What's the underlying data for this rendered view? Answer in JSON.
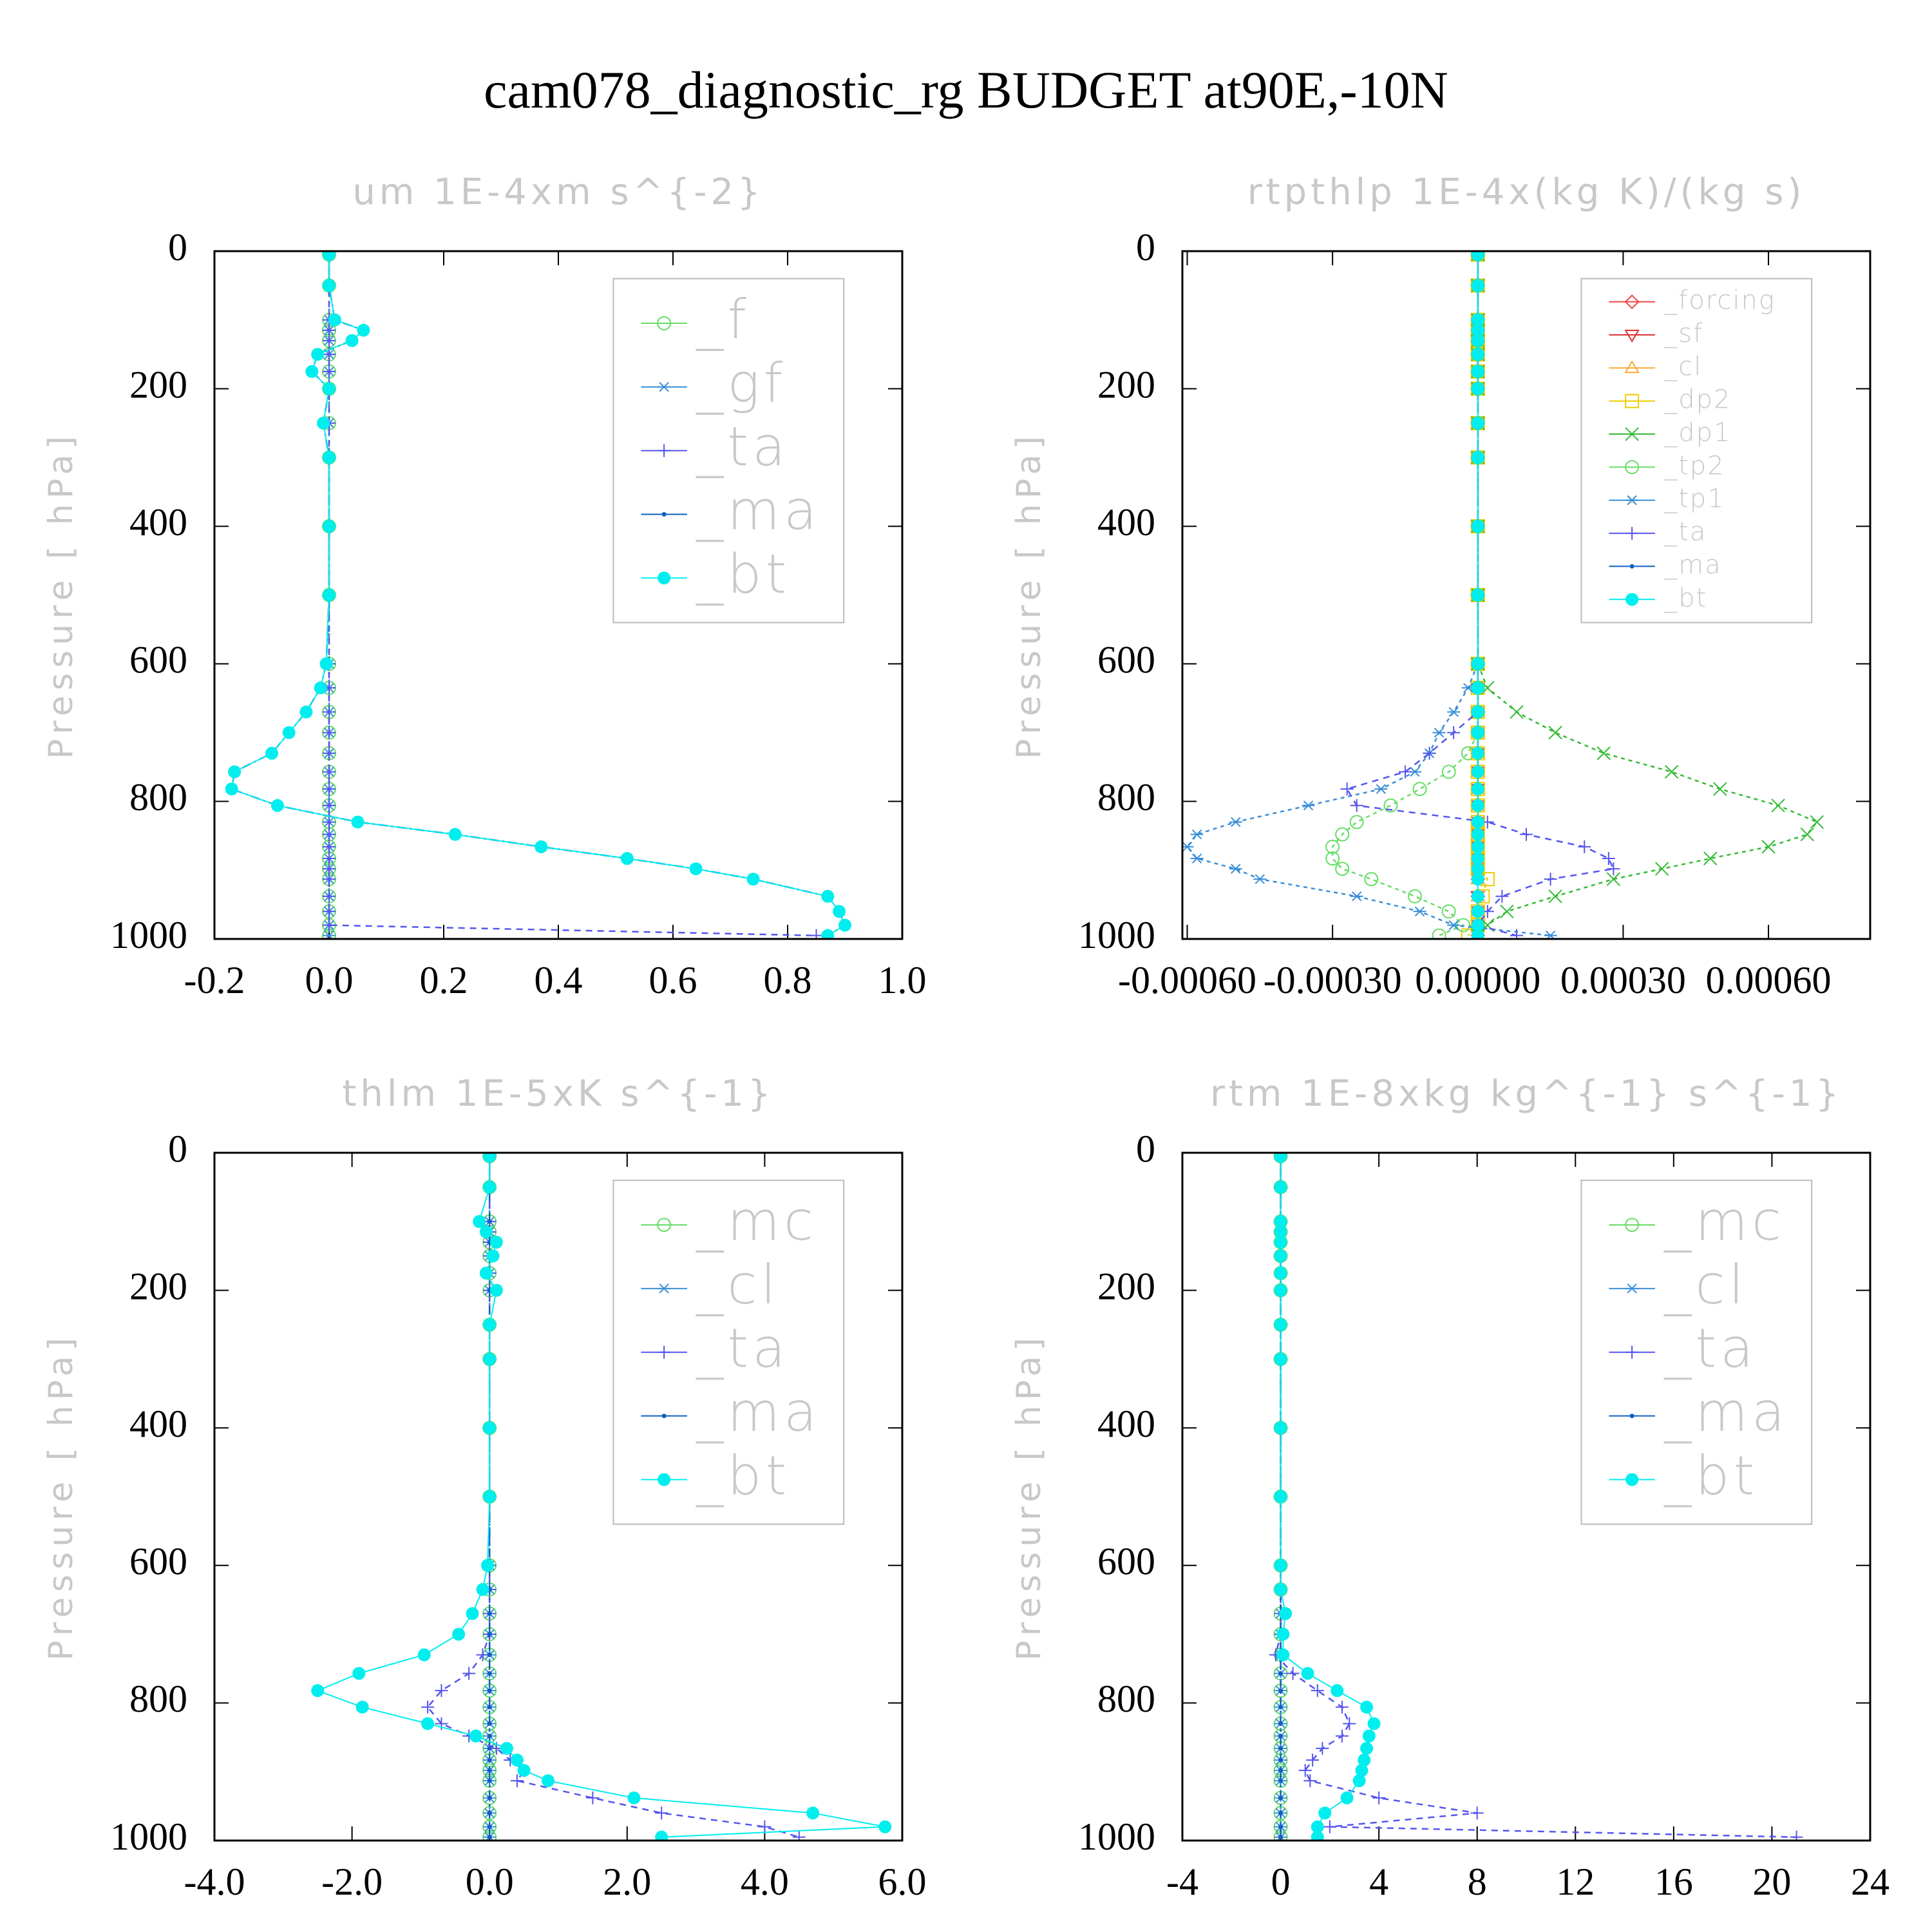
{
  "title": "cam078_diagnostic_rg  BUDGET at90E,-10N",
  "chart_data": [
    {
      "type": "line",
      "title": "um  1E-4xm s^{-2}",
      "ylabel": "Pressure [ hPa]",
      "xlim": [
        -0.2,
        1.0
      ],
      "xticks": [
        -0.2,
        {
          "value": 0,
          "label": "0.0"
        },
        0.2,
        0.4,
        0.6,
        0.8,
        {
          "value": 1,
          "label": "1.0"
        }
      ],
      "ylim": [
        0,
        1000
      ],
      "yticks": [
        0,
        200,
        400,
        600,
        800,
        1000
      ],
      "y_inverted": true,
      "y": [
        5,
        50,
        100,
        115,
        130,
        150,
        175,
        200,
        250,
        300,
        400,
        500,
        600,
        635,
        670,
        700,
        730,
        757,
        782,
        806,
        830,
        848,
        866,
        883,
        898,
        913,
        938,
        960,
        980,
        995
      ],
      "series": [
        {
          "name": "_f",
          "color": "#66dd66",
          "marker": "circle-open",
          "values": [
            0,
            0,
            0,
            0,
            0,
            0,
            0,
            0,
            0,
            0,
            0,
            0,
            0,
            0,
            0,
            0,
            0,
            0,
            0,
            0,
            0,
            0,
            0,
            0,
            0,
            0,
            0,
            0,
            0,
            0
          ]
        },
        {
          "name": "_gf",
          "color": "#3a8fd8",
          "marker": "asterisk",
          "values": [
            0,
            0,
            0,
            0,
            0,
            0,
            0,
            0,
            0,
            0,
            0,
            0,
            0,
            0,
            0,
            0,
            0,
            0,
            0,
            0,
            0,
            0,
            0,
            0,
            0,
            0,
            0,
            0,
            0,
            0
          ]
        },
        {
          "name": "_ta",
          "color": "#5555ee",
          "marker": "plus",
          "values": [
            0,
            0,
            0,
            0,
            0,
            0,
            0,
            0,
            0,
            0,
            0,
            0,
            0,
            0,
            0,
            0,
            0,
            0,
            0,
            0,
            0,
            0,
            0,
            0,
            0,
            0,
            0,
            0,
            0,
            0.85
          ]
        },
        {
          "name": "_ma",
          "color": "#1060c0",
          "marker": "dot",
          "values": [
            0,
            0,
            0.01,
            0.06,
            0.04,
            -0.02,
            -0.03,
            0,
            -0.01,
            0,
            0,
            0,
            -0.005,
            -0.015,
            -0.04,
            -0.07,
            -0.1,
            -0.165,
            -0.17,
            -0.09,
            0.05,
            0.22,
            0.37,
            0.52,
            0.64,
            0.74,
            0.87,
            0.89,
            0.9,
            0.87
          ]
        },
        {
          "name": "_bt",
          "color": "#00eeee",
          "marker": "disc",
          "values": [
            0,
            0,
            0.01,
            0.06,
            0.04,
            -0.02,
            -0.03,
            0,
            -0.01,
            0,
            0,
            0,
            -0.005,
            -0.015,
            -0.04,
            -0.07,
            -0.1,
            -0.165,
            -0.17,
            -0.09,
            0.05,
            0.22,
            0.37,
            0.52,
            0.64,
            0.74,
            0.87,
            0.89,
            0.9,
            0.87
          ]
        }
      ]
    },
    {
      "type": "line",
      "title": "rtpthlp  1E-4x(kg K)/(kg s)",
      "ylabel": "Pressure [ hPa]",
      "xlim": [
        -0.00061,
        0.00081
      ],
      "xticks": [
        {
          "value": -0.0006,
          "label": "-0.00060"
        },
        {
          "value": -0.0003,
          "label": "-0.00030"
        },
        {
          "value": 0,
          "label": "0.00000"
        },
        {
          "value": 0.0003,
          "label": "0.00030"
        },
        {
          "value": 0.0006,
          "label": "0.00060"
        }
      ],
      "ylim": [
        0,
        1000
      ],
      "yticks": [
        0,
        200,
        400,
        600,
        800,
        1000
      ],
      "y_inverted": true,
      "y": [
        5,
        50,
        100,
        115,
        130,
        150,
        175,
        200,
        250,
        300,
        400,
        500,
        600,
        635,
        670,
        700,
        730,
        757,
        782,
        806,
        830,
        848,
        866,
        883,
        898,
        913,
        938,
        960,
        980,
        995
      ],
      "series": [
        {
          "name": "_forcing",
          "color": "#ee4444",
          "marker": "diamond",
          "values": [
            0,
            0,
            0,
            0,
            0,
            0,
            0,
            0,
            0,
            0,
            0,
            0,
            0,
            0,
            0,
            0,
            0,
            0,
            0,
            0,
            0,
            0,
            0,
            0,
            0,
            0,
            0,
            0,
            0,
            0
          ]
        },
        {
          "name": "_sf",
          "color": "#dd3333",
          "marker": "tri-down",
          "values": [
            0,
            0,
            0,
            0,
            0,
            0,
            0,
            0,
            0,
            0,
            0,
            0,
            0,
            0,
            0,
            0,
            0,
            0,
            0,
            0,
            0,
            0,
            0,
            0,
            0,
            0,
            0,
            0,
            0,
            0
          ]
        },
        {
          "name": "_cl",
          "color": "#ffaa33",
          "marker": "tri-up",
          "values": [
            0,
            0,
            0,
            0,
            0,
            0,
            0,
            0,
            0,
            0,
            0,
            0,
            0,
            0,
            0,
            0,
            0,
            0,
            0,
            0,
            0,
            0,
            0,
            0,
            0,
            0,
            0,
            0,
            0,
            0
          ]
        },
        {
          "name": "_dp2",
          "color": "#eecc00",
          "marker": "square",
          "values": [
            0,
            0,
            0,
            0,
            0,
            0,
            0,
            0,
            0,
            0,
            0,
            0,
            0,
            0,
            0,
            0,
            0,
            0,
            0,
            0,
            0,
            0,
            0,
            0,
            0,
            2e-05,
            1e-05,
            0,
            0,
            -2e-05
          ]
        },
        {
          "name": "_dp1",
          "color": "#33bb33",
          "marker": "x",
          "values": [
            0,
            0,
            0,
            0,
            0,
            0,
            0,
            0,
            0,
            0,
            0,
            0,
            0,
            2e-05,
            8e-05,
            0.00016,
            0.00026,
            0.0004,
            0.0005,
            0.00062,
            0.0007,
            0.00068,
            0.0006,
            0.00048,
            0.00038,
            0.00028,
            0.00016,
            6e-05,
            2e-05,
            0
          ]
        },
        {
          "name": "_tp2",
          "color": "#66dd66",
          "marker": "circle-open",
          "values": [
            0,
            0,
            0,
            0,
            0,
            0,
            0,
            0,
            0,
            0,
            0,
            0,
            0,
            0,
            0,
            0,
            -2e-05,
            -6e-05,
            -0.00012,
            -0.00018,
            -0.00025,
            -0.00028,
            -0.0003,
            -0.0003,
            -0.00028,
            -0.00022,
            -0.00013,
            -6e-05,
            -3e-05,
            -8e-05
          ]
        },
        {
          "name": "_tp1",
          "color": "#3a8fd8",
          "marker": "asterisk",
          "values": [
            0,
            0,
            0,
            0,
            0,
            0,
            0,
            0,
            0,
            0,
            0,
            0,
            0,
            -2e-05,
            -5e-05,
            -8e-05,
            -0.0001,
            -0.00013,
            -0.0002,
            -0.00035,
            -0.0005,
            -0.00058,
            -0.0006,
            -0.00058,
            -0.0005,
            -0.00045,
            -0.00025,
            -0.00012,
            -5e-05,
            0.00015
          ]
        },
        {
          "name": "_ta",
          "color": "#5555ee",
          "marker": "plus",
          "values": [
            0,
            0,
            0,
            0,
            0,
            0,
            0,
            0,
            0,
            0,
            0,
            0,
            0,
            0,
            0,
            -5e-05,
            -0.0001,
            -0.00015,
            -0.00027,
            -0.00025,
            2e-05,
            0.0001,
            0.00022,
            0.00027,
            0.00028,
            0.00015,
            5e-05,
            2e-05,
            0,
            8e-05
          ]
        },
        {
          "name": "_ma",
          "color": "#1060c0",
          "marker": "dot",
          "values": [
            0,
            0,
            0,
            0,
            0,
            0,
            0,
            0,
            0,
            0,
            0,
            0,
            0,
            0,
            0,
            0,
            0,
            0,
            0,
            0,
            0,
            0,
            0,
            0,
            0,
            0,
            0,
            0,
            0,
            0
          ]
        },
        {
          "name": "_bt",
          "color": "#00eeee",
          "marker": "disc",
          "values": [
            0,
            0,
            0,
            0,
            0,
            0,
            0,
            0,
            0,
            0,
            0,
            0,
            0,
            0,
            0,
            0,
            0,
            0,
            0,
            0,
            0,
            0,
            0,
            0,
            0,
            0,
            0,
            0,
            0,
            0
          ]
        }
      ]
    },
    {
      "type": "line",
      "title": "thlm  1E-5xK s^{-1}",
      "ylabel": "Pressure [ hPa]",
      "xlim": [
        -4,
        6
      ],
      "xticks": [
        {
          "value": -4,
          "label": "-4.0"
        },
        {
          "value": -2,
          "label": "-2.0"
        },
        {
          "value": 0,
          "label": "0.0"
        },
        {
          "value": 2,
          "label": "2.0"
        },
        {
          "value": 4,
          "label": "4.0"
        },
        {
          "value": 6,
          "label": "6.0"
        }
      ],
      "ylim": [
        0,
        1000
      ],
      "yticks": [
        0,
        200,
        400,
        600,
        800,
        1000
      ],
      "y_inverted": true,
      "y": [
        5,
        50,
        100,
        115,
        130,
        150,
        175,
        200,
        250,
        300,
        400,
        500,
        600,
        635,
        670,
        700,
        730,
        757,
        782,
        806,
        830,
        848,
        866,
        883,
        898,
        913,
        938,
        960,
        980,
        995
      ],
      "series": [
        {
          "name": "_mc",
          "color": "#66dd66",
          "marker": "circle-open",
          "values": [
            0,
            0,
            0,
            0,
            0,
            0,
            0,
            0,
            0,
            0,
            0,
            0,
            0,
            0,
            0,
            0,
            0,
            0,
            0,
            0,
            0,
            0,
            0,
            0,
            0,
            0,
            0,
            0,
            0,
            0
          ]
        },
        {
          "name": "_cl",
          "color": "#3a8fd8",
          "marker": "asterisk",
          "values": [
            0,
            0,
            0,
            0,
            0,
            0,
            0,
            0,
            0,
            0,
            0,
            0,
            0,
            0,
            0,
            0,
            0,
            0,
            0,
            0,
            0,
            0,
            0,
            0,
            0,
            0,
            0,
            0,
            0,
            0
          ]
        },
        {
          "name": "_ta",
          "color": "#5555ee",
          "marker": "plus",
          "values": [
            0,
            0,
            0,
            0,
            0,
            0,
            0,
            0,
            0,
            0,
            0,
            0,
            0,
            0,
            0,
            0,
            -0.1,
            -0.3,
            -0.7,
            -0.9,
            -0.7,
            -0.3,
            0.1,
            0.3,
            0.5,
            0.4,
            1.5,
            2.5,
            4.0,
            4.5
          ]
        },
        {
          "name": "_ma",
          "color": "#1060c0",
          "marker": "dot",
          "values": [
            0,
            0,
            0,
            0,
            0,
            0,
            0,
            0,
            0,
            0,
            0,
            0,
            0,
            0,
            0,
            0,
            0,
            0,
            0,
            0,
            0,
            0,
            0,
            0,
            0,
            0,
            0,
            0,
            0,
            0
          ]
        },
        {
          "name": "_bt",
          "color": "#00eeee",
          "marker": "disc",
          "values": [
            0,
            0,
            -0.15,
            -0.05,
            0.1,
            0.05,
            -0.05,
            0.1,
            0,
            0,
            0,
            0,
            -0.03,
            -0.1,
            -0.25,
            -0.45,
            -0.95,
            -1.9,
            -2.5,
            -1.85,
            -0.9,
            -0.2,
            0.25,
            0.4,
            0.5,
            0.85,
            2.1,
            4.7,
            5.75,
            2.5
          ]
        }
      ]
    },
    {
      "type": "line",
      "title": "rtm  1E-8xkg kg^{-1} s^{-1}",
      "ylabel": "Pressure [ hPa]",
      "xlim": [
        -4,
        24
      ],
      "xticks": [
        -4,
        0,
        4,
        8,
        12,
        16,
        20,
        24
      ],
      "ylim": [
        0,
        1000
      ],
      "yticks": [
        0,
        200,
        400,
        600,
        800,
        1000
      ],
      "y_inverted": true,
      "y": [
        5,
        50,
        100,
        115,
        130,
        150,
        175,
        200,
        250,
        300,
        400,
        500,
        600,
        635,
        670,
        700,
        730,
        757,
        782,
        806,
        830,
        848,
        866,
        883,
        898,
        913,
        938,
        960,
        980,
        995
      ],
      "series": [
        {
          "name": "_mc",
          "color": "#66dd66",
          "marker": "circle-open",
          "values": [
            0,
            0,
            0,
            0,
            0,
            0,
            0,
            0,
            0,
            0,
            0,
            0,
            0,
            0,
            0,
            0,
            0,
            0,
            0,
            0,
            0,
            0,
            0,
            0,
            0,
            0,
            0,
            0,
            0,
            0
          ]
        },
        {
          "name": "_cl",
          "color": "#3a8fd8",
          "marker": "asterisk",
          "values": [
            0,
            0,
            0,
            0,
            0,
            0,
            0,
            0,
            0,
            0,
            0,
            0,
            0,
            0,
            0,
            0,
            0,
            0,
            0,
            0,
            0,
            0,
            0,
            0,
            0,
            0,
            0,
            0,
            0,
            0
          ]
        },
        {
          "name": "_ta",
          "color": "#5555ee",
          "marker": "plus",
          "values": [
            0,
            0,
            0,
            0,
            0,
            0,
            0,
            0,
            0,
            0,
            0,
            0,
            0,
            0,
            0,
            0,
            -0.2,
            0.5,
            1.5,
            2.5,
            2.8,
            2.5,
            1.7,
            1.3,
            1.0,
            1.2,
            4.0,
            8.0,
            2.0,
            21.0
          ]
        },
        {
          "name": "_ma",
          "color": "#1060c0",
          "marker": "dot",
          "values": [
            0,
            0,
            0,
            0,
            0,
            0,
            0,
            0,
            0,
            0,
            0,
            0,
            0,
            0,
            0,
            0,
            0,
            0,
            0,
            0,
            0,
            0,
            0,
            0,
            0,
            0,
            0,
            0,
            0,
            0
          ]
        },
        {
          "name": "_bt",
          "color": "#00eeee",
          "marker": "disc",
          "values": [
            0,
            0,
            0,
            0,
            0,
            0,
            0,
            0,
            0,
            0,
            0,
            0,
            0,
            0,
            0.2,
            0.1,
            0.1,
            1.1,
            2.3,
            3.5,
            3.8,
            3.6,
            3.5,
            3.4,
            3.3,
            3.2,
            2.7,
            1.8,
            1.5,
            1.5
          ]
        }
      ]
    }
  ]
}
